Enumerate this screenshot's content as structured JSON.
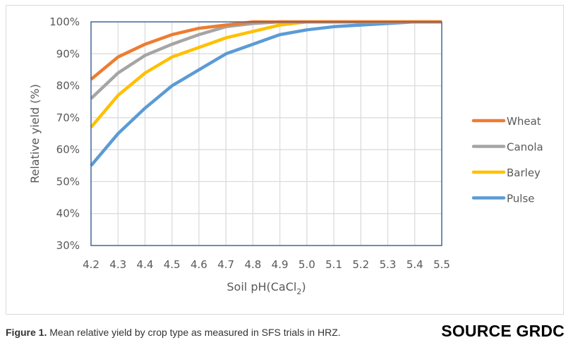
{
  "chart_data": {
    "type": "line",
    "title": "",
    "xlabel": "Soil pH(CaCl",
    "xlabel_subscript": "2",
    "xlabel_suffix": ")",
    "ylabel": "Relative yield (%)",
    "x": [
      4.2,
      4.3,
      4.4,
      4.5,
      4.6,
      4.7,
      4.8,
      4.9,
      5.0,
      5.1,
      5.2,
      5.3,
      5.4,
      5.5
    ],
    "x_tick_labels": [
      "4.2",
      "4.3",
      "4.4",
      "4.5",
      "4.6",
      "4.7",
      "4.8",
      "4.9",
      "5.0",
      "5.1",
      "5.2",
      "5.3",
      "5.4",
      "5.5"
    ],
    "xlim": [
      4.2,
      5.5
    ],
    "ylim": [
      30,
      100
    ],
    "y_ticks": [
      30,
      40,
      50,
      60,
      70,
      80,
      90,
      100
    ],
    "y_tick_labels": [
      "30%",
      "40%",
      "50%",
      "60%",
      "70%",
      "80%",
      "90%",
      "100%"
    ],
    "grid": true,
    "legend_position": "right",
    "series": [
      {
        "name": "Wheat",
        "color": "#ED7D31",
        "values": [
          82,
          89,
          93,
          96,
          98,
          99,
          100,
          100,
          100,
          100,
          100,
          100,
          100,
          100
        ]
      },
      {
        "name": "Canola",
        "color": "#A5A5A5",
        "values": [
          76,
          84,
          89.5,
          93,
          96,
          98.5,
          99.5,
          100,
          100,
          100,
          100,
          100,
          100,
          100
        ]
      },
      {
        "name": "Barley",
        "color": "#FFC000",
        "values": [
          67,
          77,
          84,
          89,
          92,
          95,
          97,
          99,
          100,
          100,
          100,
          100,
          100,
          100
        ]
      },
      {
        "name": "Pulse",
        "color": "#5B9BD5",
        "values": [
          55,
          65,
          73,
          80,
          85,
          90,
          93,
          96,
          97.5,
          98.5,
          99,
          99.5,
          100,
          100
        ]
      }
    ]
  },
  "caption": {
    "label": "Figure 1.",
    "text": " Mean relative yield by crop type as measured in SFS trials in HRZ."
  },
  "source": "SOURCE GRDC"
}
